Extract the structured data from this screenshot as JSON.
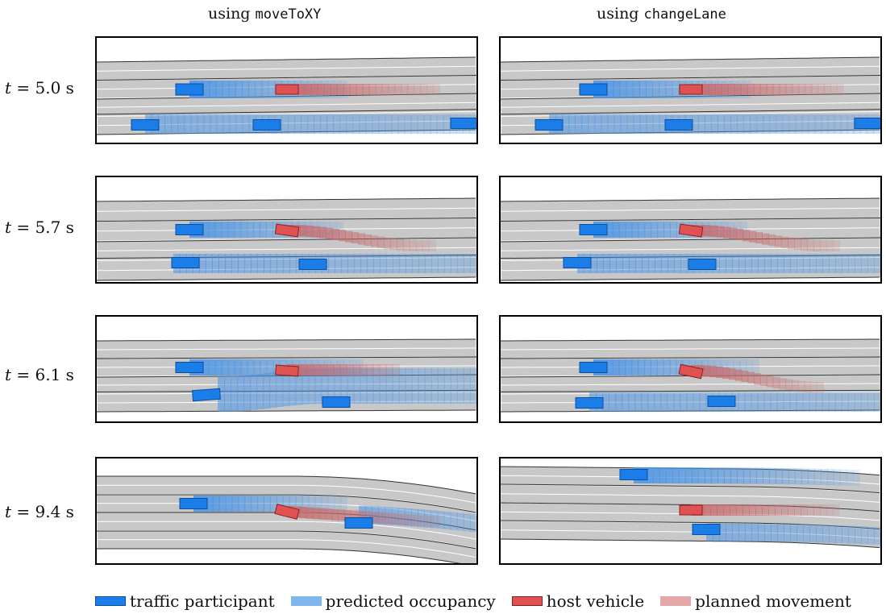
{
  "columns": [
    {
      "prefix": "using ",
      "method": "moveToXY"
    },
    {
      "prefix": "using ",
      "method": "changeLane"
    }
  ],
  "rows": [
    {
      "t_symbol": "t",
      "t_value": " = 5.0",
      "t_unit": " s"
    },
    {
      "t_symbol": "t",
      "t_value": " = 5.7",
      "t_unit": " s"
    },
    {
      "t_symbol": "t",
      "t_value": " = 6.1",
      "t_unit": " s"
    },
    {
      "t_symbol": "t",
      "t_value": " = 9.4",
      "t_unit": " s"
    }
  ],
  "legend": [
    {
      "label": "traffic participant",
      "color": "#1a7de8",
      "border": "#0b4f9e"
    },
    {
      "label": "predicted occupancy",
      "color": "#7fb6ee",
      "border": "#7fb6ee"
    },
    {
      "label": "host vehicle",
      "color": "#e05252",
      "border": "#8a1f1f"
    },
    {
      "label": "planned movement",
      "color": "#e3a7a8",
      "border": "#e3a7a8"
    }
  ],
  "colors": {
    "road": "#c8c8c8",
    "lane_divider": "#ffffff",
    "road_edge": "#333333",
    "traffic": "#1a7de8",
    "prediction": "#4a94e6",
    "host": "#e05252",
    "plan": "#c86a6c"
  }
}
